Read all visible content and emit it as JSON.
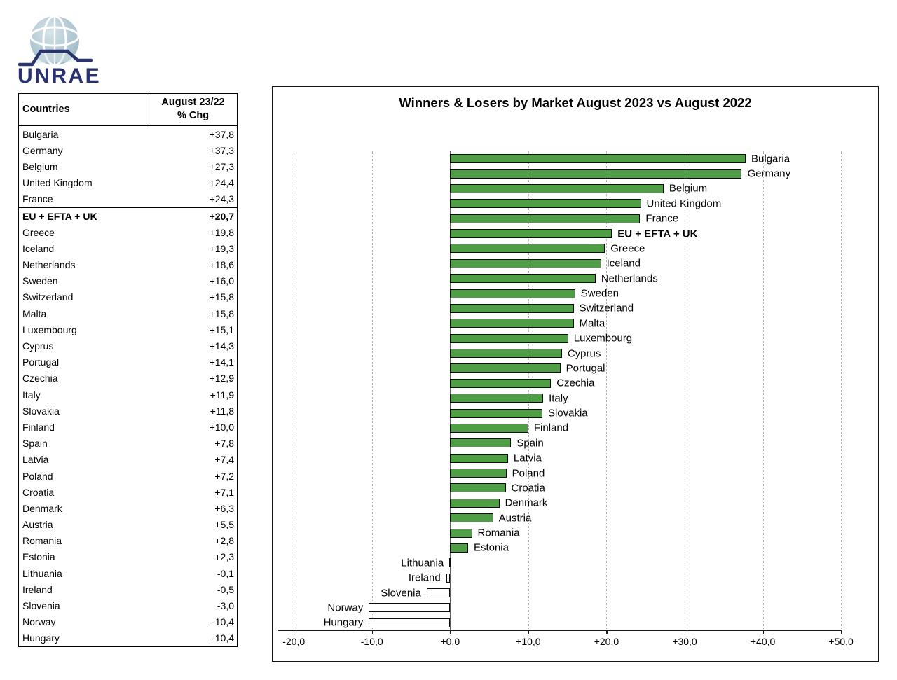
{
  "logo": {
    "text": "UNRAE"
  },
  "table": {
    "header_countries": "Countries",
    "header_change_line1": "August 23/22",
    "header_change_line2": "% Chg",
    "rows": [
      {
        "country": "Bulgaria",
        "change": "+37,8",
        "bold": false
      },
      {
        "country": "Germany",
        "change": "+37,3",
        "bold": false
      },
      {
        "country": "Belgium",
        "change": "+27,3",
        "bold": false
      },
      {
        "country": "United Kingdom",
        "change": "+24,4",
        "bold": false
      },
      {
        "country": "France",
        "change": "+24,3",
        "bold": false
      },
      {
        "country": "EU + EFTA + UK",
        "change": "+20,7",
        "bold": true
      },
      {
        "country": "Greece",
        "change": "+19,8",
        "bold": false
      },
      {
        "country": "Iceland",
        "change": "+19,3",
        "bold": false
      },
      {
        "country": "Netherlands",
        "change": "+18,6",
        "bold": false
      },
      {
        "country": "Sweden",
        "change": "+16,0",
        "bold": false
      },
      {
        "country": "Switzerland",
        "change": "+15,8",
        "bold": false
      },
      {
        "country": "Malta",
        "change": "+15,8",
        "bold": false
      },
      {
        "country": "Luxembourg",
        "change": "+15,1",
        "bold": false
      },
      {
        "country": "Cyprus",
        "change": "+14,3",
        "bold": false
      },
      {
        "country": "Portugal",
        "change": "+14,1",
        "bold": false
      },
      {
        "country": "Czechia",
        "change": "+12,9",
        "bold": false
      },
      {
        "country": "Italy",
        "change": "+11,9",
        "bold": false
      },
      {
        "country": "Slovakia",
        "change": "+11,8",
        "bold": false
      },
      {
        "country": "Finland",
        "change": "+10,0",
        "bold": false
      },
      {
        "country": "Spain",
        "change": "+7,8",
        "bold": false
      },
      {
        "country": "Latvia",
        "change": "+7,4",
        "bold": false
      },
      {
        "country": "Poland",
        "change": "+7,2",
        "bold": false
      },
      {
        "country": "Croatia",
        "change": "+7,1",
        "bold": false
      },
      {
        "country": "Denmark",
        "change": "+6,3",
        "bold": false
      },
      {
        "country": "Austria",
        "change": "+5,5",
        "bold": false
      },
      {
        "country": "Romania",
        "change": "+2,8",
        "bold": false
      },
      {
        "country": "Estonia",
        "change": "+2,3",
        "bold": false
      },
      {
        "country": "Lithuania",
        "change": "-0,1",
        "bold": false
      },
      {
        "country": "Ireland",
        "change": "-0,5",
        "bold": false
      },
      {
        "country": "Slovenia",
        "change": "-3,0",
        "bold": false
      },
      {
        "country": "Norway",
        "change": "-10,4",
        "bold": false
      },
      {
        "country": "Hungary",
        "change": "-10,4",
        "bold": false
      }
    ]
  },
  "chart_data": {
    "type": "bar",
    "orientation": "horizontal",
    "title": "Winners & Losers by Market August 2023 vs August 2022",
    "categories": [
      "Bulgaria",
      "Germany",
      "Belgium",
      "United Kingdom",
      "France",
      "EU + EFTA + UK",
      "Greece",
      "Iceland",
      "Netherlands",
      "Sweden",
      "Switzerland",
      "Malta",
      "Luxembourg",
      "Cyprus",
      "Portugal",
      "Czechia",
      "Italy",
      "Slovakia",
      "Finland",
      "Spain",
      "Latvia",
      "Poland",
      "Croatia",
      "Denmark",
      "Austria",
      "Romania",
      "Estonia",
      "Lithuania",
      "Ireland",
      "Slovenia",
      "Norway",
      "Hungary"
    ],
    "values": [
      37.8,
      37.3,
      27.3,
      24.4,
      24.3,
      20.7,
      19.8,
      19.3,
      18.6,
      16.0,
      15.8,
      15.8,
      15.1,
      14.3,
      14.1,
      12.9,
      11.9,
      11.8,
      10.0,
      7.8,
      7.4,
      7.2,
      7.1,
      6.3,
      5.5,
      2.8,
      2.3,
      -0.1,
      -0.5,
      -3.0,
      -10.4,
      -10.4
    ],
    "bold_category": "EU + EFTA + UK",
    "xlim": [
      -22,
      50
    ],
    "x_tick_values": [
      -20,
      -10,
      0,
      10,
      20,
      30,
      40,
      50
    ],
    "x_tick_labels": [
      "-20,0",
      "-10,0",
      "+0,0",
      "+10,0",
      "+20,0",
      "+30,0",
      "+40,0",
      "+50,0"
    ],
    "grid": "vertical-dotted",
    "legend": "none",
    "positive_bar_color": "#4f9d45",
    "negative_bar_color": "#ffffff",
    "bar_border_color": "#0c0c0c"
  }
}
